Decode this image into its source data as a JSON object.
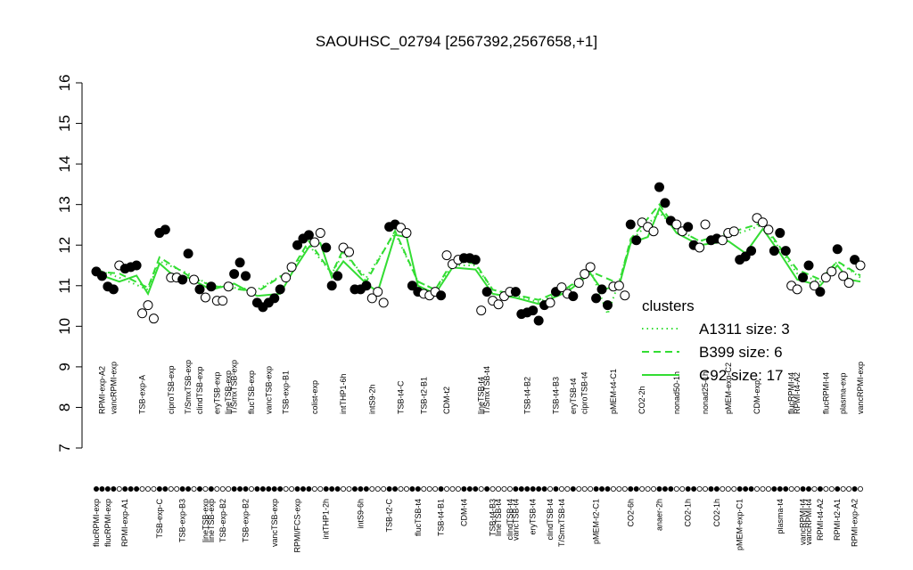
{
  "chart_data": {
    "type": "expression-profile",
    "title": "SAOUHSC_02794 [2567392,2567658,+1]",
    "ylim": [
      7,
      16
    ],
    "yticks": [
      7,
      8,
      9,
      10,
      11,
      12,
      13,
      14,
      15,
      16
    ],
    "values": [
      11.35,
      11.24,
      10.98,
      10.91,
      11.5,
      11.42,
      11.46,
      11.5,
      10.32,
      10.52,
      10.19,
      12.3,
      12.38,
      11.2,
      11.2,
      11.15,
      11.79,
      11.15,
      10.91,
      10.71,
      10.98,
      10.63,
      10.63,
      10.98,
      11.29,
      11.57,
      11.24,
      10.85,
      10.58,
      10.47,
      10.58,
      10.69,
      10.91,
      11.2,
      11.46,
      12.0,
      12.16,
      12.25,
      12.07,
      12.3,
      11.94,
      11.0,
      11.24,
      11.94,
      11.83,
      10.91,
      10.91,
      11.0,
      10.69,
      10.85,
      10.58,
      12.45,
      12.51,
      12.43,
      12.3,
      11.0,
      10.85,
      10.8,
      10.76,
      10.85,
      10.76,
      11.75,
      11.53,
      11.64,
      11.68,
      11.68,
      11.64,
      10.39,
      10.85,
      10.63,
      10.54,
      10.74,
      10.85,
      10.85,
      10.3,
      10.34,
      10.39,
      10.14,
      10.52,
      10.58,
      10.85,
      10.96,
      10.8,
      10.74,
      11.07,
      11.29,
      11.46,
      10.69,
      10.91,
      10.52,
      10.98,
      11.0,
      10.76,
      12.51,
      12.12,
      12.56,
      12.45,
      12.34,
      13.43,
      13.04,
      12.6,
      12.51,
      12.34,
      12.45,
      12.0,
      11.94,
      12.51,
      12.12,
      12.16,
      12.12,
      12.3,
      12.34,
      11.64,
      11.72,
      11.86,
      12.67,
      12.56,
      12.38,
      11.86,
      12.3,
      11.86,
      11.0,
      10.91,
      11.2,
      11.5,
      11.0,
      10.85,
      11.2,
      11.35,
      11.9,
      11.24,
      11.07,
      11.64,
      11.5
    ],
    "filled": [
      true,
      true,
      true,
      true,
      false,
      true,
      true,
      true,
      false,
      false,
      false,
      true,
      true,
      false,
      false,
      true,
      true,
      false,
      true,
      false,
      true,
      false,
      false,
      false,
      true,
      true,
      true,
      false,
      true,
      true,
      true,
      true,
      true,
      false,
      false,
      true,
      true,
      true,
      false,
      false,
      true,
      true,
      true,
      false,
      false,
      true,
      true,
      true,
      false,
      false,
      false,
      true,
      true,
      false,
      false,
      true,
      true,
      false,
      false,
      false,
      true,
      false,
      false,
      false,
      true,
      true,
      true,
      false,
      true,
      false,
      false,
      false,
      false,
      true,
      true,
      true,
      true,
      true,
      true,
      false,
      true,
      false,
      false,
      true,
      false,
      false,
      false,
      true,
      true,
      true,
      false,
      false,
      false,
      true,
      true,
      false,
      false,
      false,
      true,
      true,
      true,
      false,
      false,
      true,
      true,
      false,
      false,
      true,
      true,
      false,
      false,
      false,
      true,
      true,
      true,
      false,
      false,
      false,
      true,
      true,
      true,
      false,
      false,
      true,
      true,
      false,
      true,
      false,
      false,
      true,
      false,
      false,
      true,
      false
    ],
    "top_labels": [
      null,
      "RPMI-exp-A2",
      null,
      "vancRPMI-exp",
      null,
      null,
      null,
      null,
      "TSB-exp-A",
      null,
      null,
      null,
      null,
      "ciproTSB-exp",
      null,
      null,
      "T/SmxTSB-exp",
      null,
      "clindTSB-exp",
      null,
      null,
      "eryTSB-exp",
      null,
      "lineTSB-exp",
      "T/SmxTSB-exp",
      null,
      null,
      "flucTSB-exp",
      null,
      null,
      "vancTSB-exp",
      null,
      null,
      "TSB-exp-B1",
      null,
      null,
      null,
      null,
      "colist-exp",
      null,
      null,
      null,
      null,
      "intTHP1-6h",
      null,
      null,
      null,
      null,
      "intS9-2h",
      null,
      null,
      null,
      null,
      "TSB-t4-C",
      null,
      null,
      null,
      "TSB-t2-B1",
      null,
      null,
      null,
      "CDM-t2",
      null,
      null,
      null,
      null,
      null,
      "lineTSB-t4",
      "T/SmxTSB-t4",
      null,
      null,
      null,
      null,
      null,
      null,
      "TSB-t4-B2",
      null,
      null,
      null,
      null,
      "TSB-t4-B3",
      null,
      null,
      "eryTSB-t4",
      null,
      "ciproTSB-t4",
      null,
      null,
      null,
      null,
      "pMEM-t4-C1",
      null,
      null,
      null,
      null,
      "CO2-2h",
      null,
      null,
      null,
      null,
      null,
      "nonad50-1h",
      null,
      null,
      null,
      null,
      "nonad25-1h",
      null,
      null,
      null,
      "pMEM-exp-C2",
      null,
      null,
      null,
      null,
      "CDM-exp",
      null,
      null,
      null,
      null,
      null,
      "flucRPMI-t4",
      "RPMI-t4-A2",
      null,
      null,
      null,
      null,
      "flucRPMI-t4",
      null,
      null,
      "plasma-exp",
      null,
      null,
      "vancRPMI-exp"
    ],
    "bottom_labels": [
      "flucRPMI-exp",
      null,
      "flucRPMI-exp",
      null,
      null,
      "RPMI-exp-A1",
      null,
      null,
      null,
      null,
      null,
      "TSB-exp-C",
      null,
      null,
      null,
      "TSB-exp-B3",
      null,
      null,
      null,
      "lineTSB-exp",
      "lineTSB-exp",
      null,
      "TSB-exp-B2",
      null,
      null,
      null,
      "TSB-exp-B2",
      null,
      null,
      null,
      null,
      "vancTSB-exp",
      null,
      null,
      null,
      "RPMI/FCS-exp",
      null,
      null,
      null,
      null,
      "intTHP1-2h",
      null,
      null,
      null,
      null,
      null,
      "intS9-6h",
      null,
      null,
      null,
      null,
      "TSB-t2-C",
      null,
      null,
      null,
      null,
      "flucTSB-t4",
      null,
      null,
      null,
      "TSB-t4-B1",
      null,
      null,
      null,
      "CDM-t4",
      null,
      null,
      null,
      null,
      "TSB-t4-B3",
      "lineTSB-t4",
      null,
      "clindTSB-t4",
      "vancTSB-t4",
      null,
      null,
      "eryTSB-t4",
      null,
      null,
      "clindTSB-t4",
      null,
      "T/SmxTSB-t4",
      null,
      null,
      null,
      null,
      null,
      "pMEM-t2-C1",
      null,
      null,
      null,
      null,
      null,
      "CO2-6h",
      null,
      null,
      null,
      null,
      "anaer-2h",
      null,
      null,
      null,
      null,
      "CO2-1h",
      null,
      null,
      null,
      null,
      "CO2-1h",
      null,
      null,
      null,
      "pMEM-exp-C1",
      null,
      null,
      null,
      null,
      null,
      null,
      "plasma-t4",
      null,
      null,
      null,
      "vancRPMI-t4",
      "vancRPMI-t4",
      null,
      "RPMI-t4-A2",
      null,
      null,
      "RPMI-t2-A1",
      null,
      null,
      "RPMI-exp-A2",
      null
    ],
    "legend_title": "clusters",
    "series": [
      {
        "name": "A1311 size: 3",
        "color": "#33dd33",
        "dash": "dotted",
        "x": [
          0,
          4,
          9,
          11,
          16,
          20,
          28,
          34,
          37,
          41,
          43,
          47,
          52,
          56,
          59,
          62,
          66,
          69,
          77,
          82,
          86,
          89,
          91,
          93,
          98,
          101,
          105,
          110,
          116,
          119,
          122,
          126,
          129,
          133
        ],
        "values": [
          11.4,
          11.2,
          10.9,
          11.6,
          11.3,
          11.0,
          10.9,
          11.4,
          12.0,
          11.3,
          11.8,
          11.2,
          12.3,
          11.1,
          10.9,
          11.5,
          11.5,
          10.9,
          10.6,
          10.9,
          11.4,
          10.3,
          11.1,
          12.1,
          12.8,
          12.4,
          12.1,
          12.2,
          12.5,
          11.9,
          11.3,
          11.1,
          11.6,
          11.2
        ]
      },
      {
        "name": "B399 size: 6",
        "color": "#33dd33",
        "dash": "dashed",
        "x": [
          0,
          4,
          9,
          11,
          16,
          20,
          28,
          34,
          37,
          41,
          43,
          47,
          52,
          56,
          59,
          62,
          66,
          69,
          77,
          82,
          86,
          91,
          93,
          98,
          101,
          105,
          110,
          116,
          119,
          122,
          126,
          129,
          133
        ],
        "values": [
          11.35,
          11.3,
          10.95,
          11.7,
          11.25,
          11.0,
          10.85,
          11.4,
          12.1,
          11.3,
          11.9,
          11.1,
          12.35,
          11.1,
          10.9,
          11.6,
          11.55,
          10.9,
          10.65,
          10.95,
          11.35,
          11.05,
          12.15,
          13.0,
          12.4,
          12.1,
          12.3,
          12.55,
          11.95,
          11.4,
          11.15,
          11.6,
          11.25
        ]
      },
      {
        "name": "C92 size: 17",
        "color": "#33dd33",
        "dash": "solid",
        "x": [
          0,
          4,
          7,
          9,
          11,
          13,
          16,
          20,
          24,
          28,
          32,
          34,
          37,
          39,
          41,
          43,
          47,
          49,
          52,
          54,
          56,
          59,
          62,
          66,
          69,
          73,
          77,
          82,
          86,
          88,
          91,
          93,
          96,
          98,
          101,
          105,
          110,
          113,
          116,
          119,
          122,
          126,
          129,
          131,
          133
        ],
        "values": [
          11.3,
          11.1,
          11.25,
          10.8,
          11.55,
          11.3,
          11.2,
          10.9,
          11.05,
          10.75,
          10.8,
          11.3,
          11.95,
          12.05,
          11.2,
          11.6,
          11.05,
          10.85,
          12.25,
          12.2,
          11.0,
          10.8,
          11.45,
          11.4,
          10.8,
          10.7,
          10.55,
          10.85,
          11.3,
          10.9,
          11.0,
          12.05,
          12.2,
          12.9,
          12.3,
          12.0,
          12.1,
          11.8,
          12.4,
          11.8,
          11.15,
          11.0,
          11.5,
          11.15,
          11.1
        ]
      }
    ]
  }
}
